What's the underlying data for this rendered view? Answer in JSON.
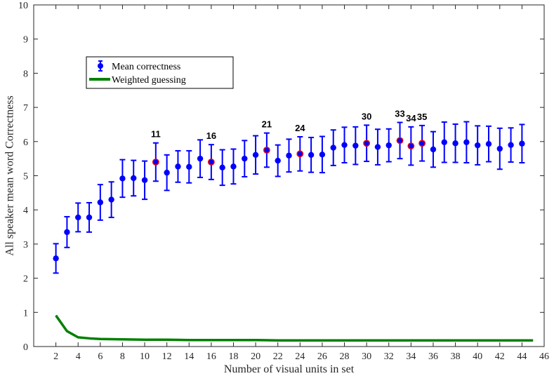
{
  "chart_data": {
    "type": "scatter",
    "xlabel": "Number of visual units in set",
    "ylabel": "All speaker mean word Correctness",
    "xlim": [
      0,
      46
    ],
    "ylim": [
      0,
      10
    ],
    "xticks": [
      2,
      4,
      6,
      8,
      10,
      12,
      14,
      16,
      18,
      20,
      22,
      24,
      26,
      28,
      30,
      32,
      34,
      36,
      38,
      40,
      42,
      44,
      46
    ],
    "yticks": [
      0,
      1,
      2,
      3,
      4,
      5,
      6,
      7,
      8,
      9,
      10
    ],
    "grid": false,
    "legend_position": "top-left",
    "colors": {
      "mean": "#0000ff",
      "guess": "#008000",
      "highlight": "#ff0000"
    },
    "series": [
      {
        "name": "Mean correctness",
        "kind": "errorbar",
        "x": [
          2,
          3,
          4,
          5,
          6,
          7,
          8,
          9,
          10,
          11,
          12,
          13,
          14,
          15,
          16,
          17,
          18,
          19,
          20,
          21,
          22,
          23,
          24,
          25,
          26,
          27,
          28,
          29,
          30,
          31,
          32,
          33,
          34,
          35,
          36,
          37,
          38,
          39,
          40,
          41,
          42,
          43,
          44
        ],
        "y": [
          2.58,
          3.35,
          3.78,
          3.78,
          4.22,
          4.3,
          4.92,
          4.93,
          4.87,
          5.4,
          5.09,
          5.27,
          5.26,
          5.5,
          5.4,
          5.24,
          5.27,
          5.5,
          5.61,
          5.75,
          5.44,
          5.59,
          5.64,
          5.61,
          5.62,
          5.82,
          5.9,
          5.88,
          5.95,
          5.84,
          5.89,
          6.03,
          5.87,
          5.95,
          5.77,
          5.98,
          5.95,
          5.98,
          5.89,
          5.93,
          5.79,
          5.9,
          5.94
        ],
        "err": [
          0.43,
          0.45,
          0.42,
          0.43,
          0.52,
          0.52,
          0.55,
          0.52,
          0.56,
          0.56,
          0.52,
          0.46,
          0.47,
          0.55,
          0.51,
          0.52,
          0.51,
          0.53,
          0.56,
          0.5,
          0.46,
          0.48,
          0.5,
          0.51,
          0.53,
          0.52,
          0.52,
          0.55,
          0.53,
          0.52,
          0.48,
          0.53,
          0.56,
          0.52,
          0.52,
          0.59,
          0.56,
          0.6,
          0.57,
          0.52,
          0.6,
          0.5,
          0.56
        ]
      },
      {
        "name": "Weighted guessing",
        "kind": "line",
        "x": [
          2,
          3,
          4,
          5,
          6,
          8,
          10,
          12,
          14,
          16,
          18,
          20,
          22,
          24,
          26,
          28,
          30,
          32,
          34,
          36,
          38,
          40,
          42,
          44,
          45
        ],
        "y": [
          0.91,
          0.45,
          0.27,
          0.24,
          0.22,
          0.21,
          0.2,
          0.2,
          0.19,
          0.19,
          0.19,
          0.19,
          0.18,
          0.18,
          0.18,
          0.18,
          0.18,
          0.18,
          0.18,
          0.18,
          0.18,
          0.18,
          0.18,
          0.18,
          0.18
        ]
      }
    ],
    "highlighted_x": [
      11,
      16,
      21,
      24,
      30,
      33,
      34,
      35
    ],
    "annotations": [
      {
        "text": "11",
        "x": 11
      },
      {
        "text": "16",
        "x": 16
      },
      {
        "text": "21",
        "x": 21
      },
      {
        "text": "24",
        "x": 24
      },
      {
        "text": "30",
        "x": 30
      },
      {
        "text": "33",
        "x": 33
      },
      {
        "text": "34",
        "x": 34
      },
      {
        "text": "35",
        "x": 35
      }
    ]
  }
}
